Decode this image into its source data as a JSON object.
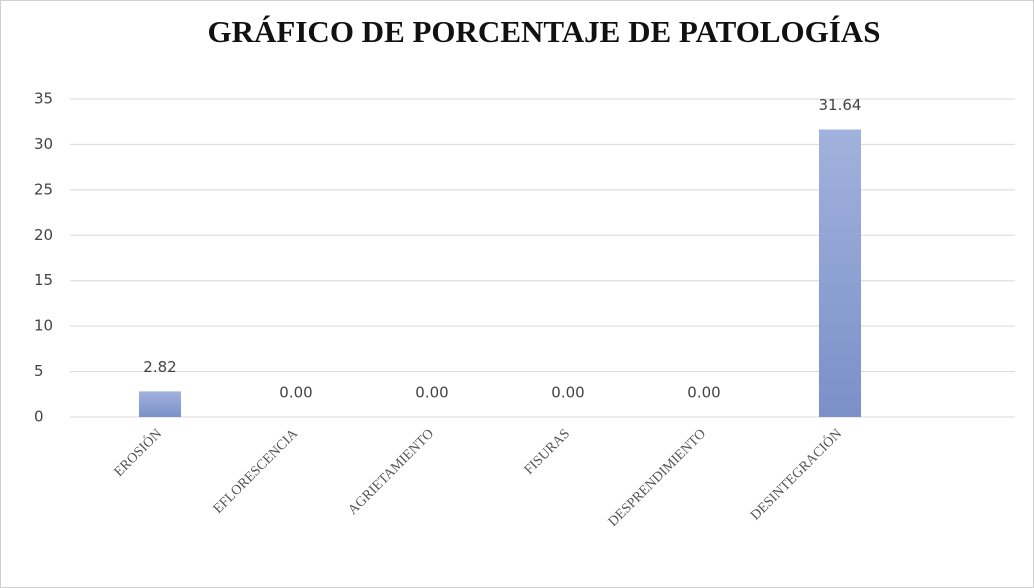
{
  "chart_data": {
    "type": "bar",
    "title": "GRÁFICO DE PORCENTAJE DE PATOLOGÍAS",
    "categories": [
      "EROSIÓN",
      "EFLORESCENCIA",
      "AGRIETAMIENTO",
      "FISURAS",
      "DESPRENDIMIENTO",
      "DESINTEGRACIÓN",
      null
    ],
    "values": [
      2.82,
      0,
      0,
      0,
      0,
      31.64,
      null
    ],
    "value_labels": [
      "2.82",
      "0.00",
      "0.00",
      "0.00",
      "0.00",
      "31.64",
      null
    ],
    "color": "#8fa2d6",
    "ylim": [
      0,
      35
    ],
    "yticks": [
      0,
      5,
      10,
      15,
      20,
      25,
      30,
      35
    ],
    "grid": true
  }
}
